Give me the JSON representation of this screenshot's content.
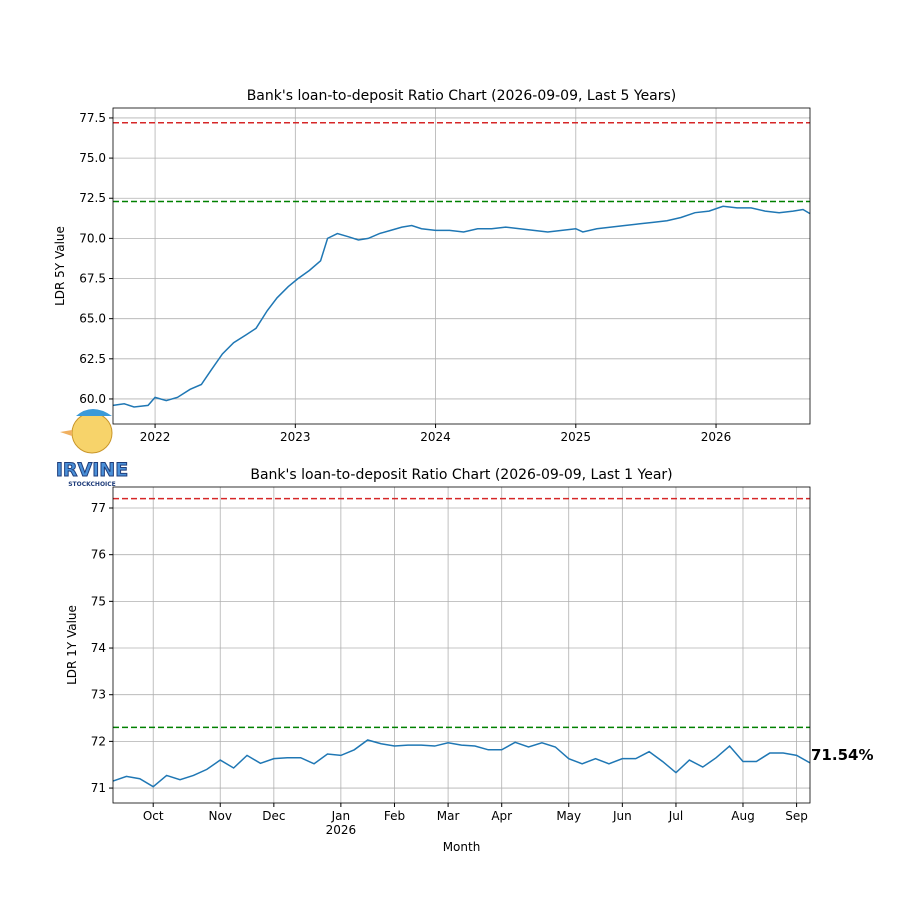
{
  "logo": {
    "text": "IRVINE",
    "subtext": "STOCKCHOICE"
  },
  "chart_data": [
    {
      "type": "line",
      "title": "Bank's loan-to-deposit Ratio Chart (2026-09-09, Last 5 Years)",
      "ylabel": "LDR 5Y Value",
      "color": "#1f77b4",
      "grid": true,
      "x": [
        2021.7,
        2021.78,
        2021.85,
        2021.95,
        2022.0,
        2022.08,
        2022.16,
        2022.25,
        2022.33,
        2022.4,
        2022.48,
        2022.56,
        2022.65,
        2022.72,
        2022.8,
        2022.87,
        2022.95,
        2023.02,
        2023.1,
        2023.18,
        2023.23,
        2023.3,
        2023.38,
        2023.45,
        2023.52,
        2023.6,
        2023.68,
        2023.76,
        2023.83,
        2023.9,
        2024.0,
        2024.1,
        2024.2,
        2024.3,
        2024.4,
        2024.5,
        2024.6,
        2024.7,
        2024.8,
        2024.9,
        2025.0,
        2025.05,
        2025.15,
        2025.25,
        2025.35,
        2025.45,
        2025.55,
        2025.65,
        2025.75,
        2025.85,
        2025.95,
        2026.05,
        2026.15,
        2026.25,
        2026.35,
        2026.45,
        2026.55,
        2026.62,
        2026.67
      ],
      "values": [
        59.6,
        59.7,
        59.5,
        59.6,
        60.1,
        59.9,
        60.1,
        60.6,
        60.9,
        61.8,
        62.8,
        63.5,
        64.0,
        64.4,
        65.5,
        66.3,
        67.0,
        67.5,
        68.0,
        68.6,
        70.0,
        70.3,
        70.1,
        69.9,
        70.0,
        70.3,
        70.5,
        70.7,
        70.8,
        70.6,
        70.5,
        70.5,
        70.4,
        70.6,
        70.6,
        70.7,
        70.6,
        70.5,
        70.4,
        70.5,
        70.6,
        70.4,
        70.6,
        70.7,
        70.8,
        70.9,
        71.0,
        71.1,
        71.3,
        71.6,
        71.7,
        72.0,
        71.9,
        71.9,
        71.7,
        71.6,
        71.7,
        71.8,
        71.54
      ],
      "reference_lines": [
        {
          "value": 77.2,
          "color": "#d62728"
        },
        {
          "value": 72.3,
          "color": "#008000"
        }
      ],
      "xlim": [
        2021.7,
        2026.67
      ],
      "xticks": [
        2022,
        2023,
        2024,
        2025,
        2026
      ],
      "ylim": [
        58.44,
        78.12
      ],
      "yticks": [
        {
          "value": 60,
          "label": "60.0"
        },
        62.5,
        {
          "value": 65,
          "label": "65.0"
        },
        67.5,
        {
          "value": 70,
          "label": "70.0"
        },
        72.5,
        {
          "value": 75,
          "label": "75.0"
        },
        77.5
      ]
    },
    {
      "type": "line",
      "title": "Bank's loan-to-deposit Ratio Chart (2026-09-09, Last 1 Year)",
      "ylabel": "LDR 1Y Value",
      "xlabel": "Month",
      "color": "#1f77b4",
      "grid": true,
      "annotation": "71.54%",
      "x": [
        0,
        1,
        2,
        3,
        4,
        5,
        6,
        7,
        8,
        9,
        10,
        11,
        12,
        13,
        14,
        15,
        16,
        17,
        18,
        19,
        20,
        21,
        22,
        23,
        24,
        25,
        26,
        27,
        28,
        29,
        30,
        31,
        32,
        33,
        34,
        35,
        36,
        37,
        38,
        39,
        40,
        41,
        42,
        43,
        44,
        45,
        46,
        47,
        48,
        49,
        50,
        51,
        52
      ],
      "values": [
        71.15,
        71.25,
        71.2,
        71.03,
        71.27,
        71.18,
        71.27,
        71.4,
        71.6,
        71.43,
        71.7,
        71.53,
        71.63,
        71.65,
        71.65,
        71.52,
        71.73,
        71.7,
        71.82,
        72.03,
        71.95,
        71.9,
        71.92,
        71.92,
        71.9,
        71.97,
        71.92,
        71.9,
        71.82,
        71.82,
        71.98,
        71.88,
        71.97,
        71.88,
        71.63,
        71.52,
        71.63,
        71.52,
        71.63,
        71.63,
        71.78,
        71.57,
        71.33,
        71.6,
        71.45,
        71.65,
        71.9,
        71.57,
        71.57,
        71.75,
        71.75,
        71.7,
        71.54
      ],
      "reference_lines": [
        {
          "value": 77.2,
          "color": "#d62728"
        },
        {
          "value": 72.3,
          "color": "#008000"
        }
      ],
      "xlim": [
        0,
        52
      ],
      "xticks": [
        {
          "value": 3,
          "label": "Oct"
        },
        {
          "value": 8,
          "label": "Nov"
        },
        {
          "value": 12,
          "label": "Dec"
        },
        {
          "value": 17,
          "label": "Jan\n2026"
        },
        {
          "value": 21,
          "label": "Feb"
        },
        {
          "value": 25,
          "label": "Mar"
        },
        {
          "value": 29,
          "label": "Apr"
        },
        {
          "value": 34,
          "label": "May"
        },
        {
          "value": 38,
          "label": "Jun"
        },
        {
          "value": 42,
          "label": "Jul"
        },
        {
          "value": 47,
          "label": "Aug"
        },
        {
          "value": 51,
          "label": "Sep"
        }
      ],
      "ylim": [
        70.68,
        77.45
      ],
      "yticks": [
        71,
        72,
        73,
        74,
        75,
        76,
        77
      ]
    }
  ]
}
